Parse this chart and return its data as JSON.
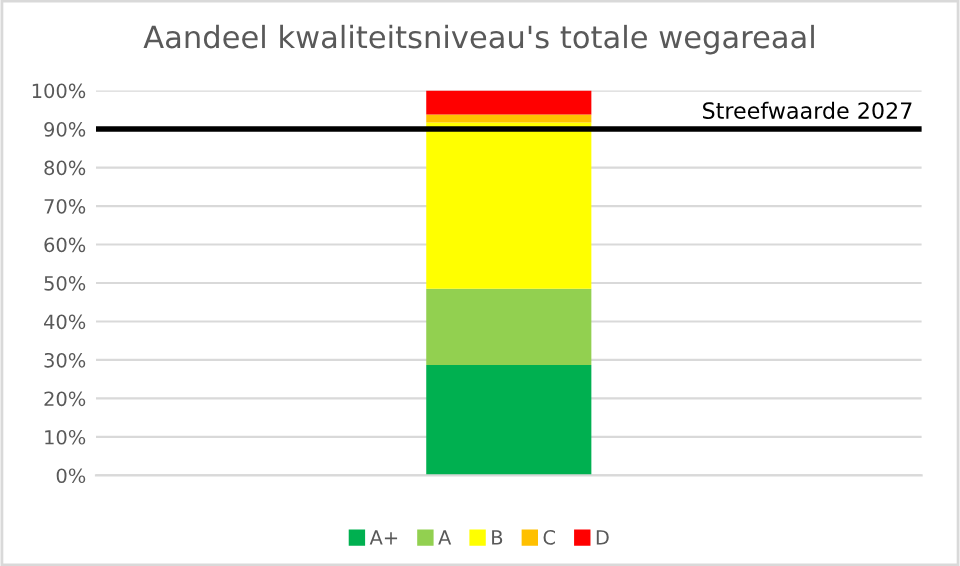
{
  "chart_data": {
    "type": "bar",
    "title": "Aandeel kwaliteitsniveau's totale wegareaal",
    "categories": [
      null
    ],
    "stacked": true,
    "series": [
      {
        "name": "A+",
        "color": "#00b050",
        "values": [
          28.7
        ]
      },
      {
        "name": "A",
        "color": "#92d050",
        "values": [
          19.8
        ]
      },
      {
        "name": "B",
        "color": "#ffff00",
        "values": [
          43.2
        ]
      },
      {
        "name": "C",
        "color": "#ffc000",
        "values": [
          2.1
        ]
      },
      {
        "name": "D",
        "color": "#ff0000",
        "values": [
          6.2
        ]
      }
    ],
    "ylim": [
      0,
      100
    ],
    "yticks": [
      {
        "value": 0,
        "label": "0%"
      },
      {
        "value": 10,
        "label": "10%"
      },
      {
        "value": 20,
        "label": "20%"
      },
      {
        "value": 30,
        "label": "30%"
      },
      {
        "value": 40,
        "label": "40%"
      },
      {
        "value": 50,
        "label": "50%"
      },
      {
        "value": 60,
        "label": "60%"
      },
      {
        "value": 70,
        "label": "70%"
      },
      {
        "value": 80,
        "label": "80%"
      },
      {
        "value": 90,
        "label": "90%"
      },
      {
        "value": 100,
        "label": "100%"
      }
    ],
    "ref_lines": [
      {
        "axis": "y",
        "value": 90,
        "label": "Streefwaarde 2027",
        "color": "#000000"
      }
    ],
    "grid": "y",
    "legend": "bottom"
  }
}
